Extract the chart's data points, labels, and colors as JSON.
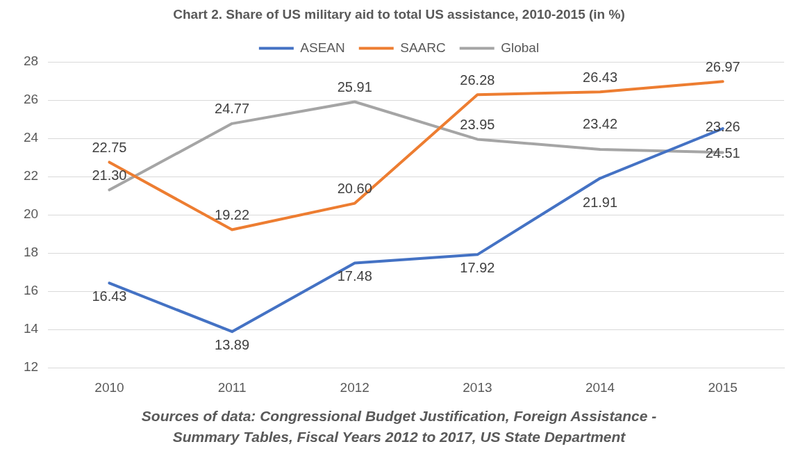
{
  "chart_data": {
    "type": "line",
    "title": "Chart 2. Share of US military aid to total US assistance,  2010-2015 (in %)",
    "categories": [
      "2010",
      "2011",
      "2012",
      "2013",
      "2014",
      "2015"
    ],
    "series": [
      {
        "name": "ASEAN",
        "color": "#4472c4",
        "values": [
          16.43,
          13.89,
          17.48,
          17.92,
          21.91,
          24.51
        ],
        "value_labels": [
          "16.43",
          "13.89",
          "17.48",
          "17.92",
          "21.91",
          "24.51"
        ]
      },
      {
        "name": "SAARC",
        "color": "#ed7d31",
        "values": [
          22.75,
          19.22,
          20.6,
          26.28,
          26.43,
          26.97
        ],
        "value_labels": [
          "22.75",
          "19.22",
          "20.60",
          "26.28",
          "26.43",
          "26.97"
        ]
      },
      {
        "name": "Global",
        "color": "#a5a5a5",
        "values": [
          21.3,
          24.77,
          25.91,
          23.95,
          23.42,
          23.26
        ],
        "value_labels": [
          "21.30",
          "24.77",
          "25.91",
          "23.95",
          "23.42",
          "23.26"
        ]
      }
    ],
    "ylim": [
      12,
      28
    ],
    "yticks": [
      12,
      14,
      16,
      18,
      20,
      22,
      24,
      26,
      28
    ],
    "grid": "y",
    "legend": "top",
    "marker": "none",
    "line_style": "solid",
    "annotations": [
      "Sources of data: Congressional Budget Justification, Foreign Assistance - Summary Tables, Fiscal Years 2012 to 2017, US State Department"
    ]
  }
}
